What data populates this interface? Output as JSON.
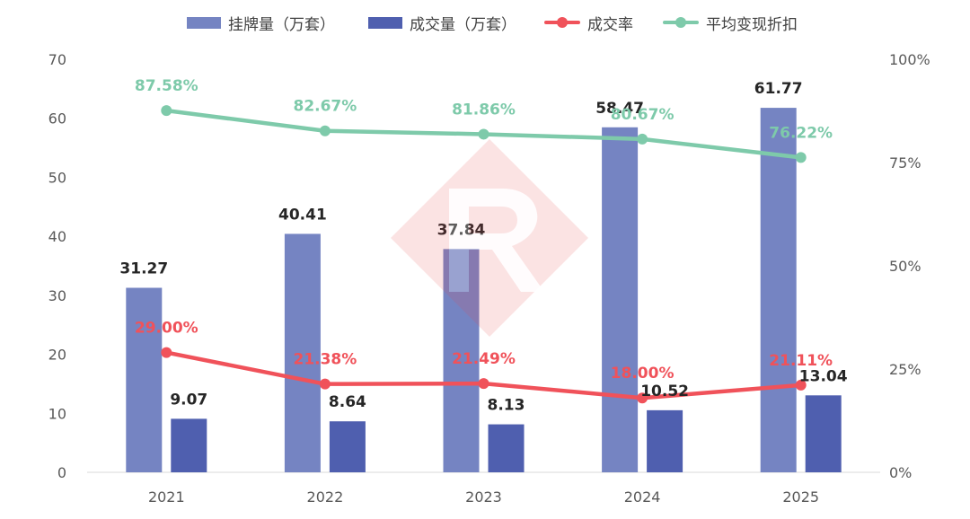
{
  "legend": {
    "listing_label": "挂牌量（万套）",
    "deal_label": "成交量（万套）",
    "rate_label": "成交率",
    "discount_label": "平均变现折扣"
  },
  "colors": {
    "listing": "#7584c2",
    "deal": "#4f5faf",
    "rate": "#f0525a",
    "discount": "#7ecaaa",
    "axis_text": "#595959",
    "label_text": "#262626",
    "watermark": "#e7474d"
  },
  "chart_data": {
    "type": "bar",
    "categories": [
      "2021",
      "2022",
      "2023",
      "2024",
      "2025"
    ],
    "series": [
      {
        "name": "挂牌量（万套）",
        "type": "bar",
        "axis": "left",
        "values": [
          31.27,
          40.41,
          37.84,
          58.47,
          61.77
        ],
        "labels": [
          "31.27",
          "40.41",
          "37.84",
          "58.47",
          "61.77"
        ]
      },
      {
        "name": "成交量（万套）",
        "type": "bar",
        "axis": "left",
        "values": [
          9.07,
          8.64,
          8.13,
          10.52,
          13.04
        ],
        "labels": [
          "9.07",
          "8.64",
          "8.13",
          "10.52",
          "13.04"
        ]
      },
      {
        "name": "成交率",
        "type": "line",
        "axis": "right",
        "values": [
          29.0,
          21.38,
          21.49,
          18.0,
          21.11
        ],
        "labels": [
          "29.00%",
          "21.38%",
          "21.49%",
          "18.00%",
          "21.11%"
        ]
      },
      {
        "name": "平均变现折扣",
        "type": "line",
        "axis": "right",
        "values": [
          87.58,
          82.67,
          81.86,
          80.67,
          76.22
        ],
        "labels": [
          "87.58%",
          "82.67%",
          "81.86%",
          "80.67%",
          "76.22%"
        ]
      }
    ],
    "ylim": [
      0,
      70
    ],
    "yticks": [
      "0",
      "10",
      "20",
      "30",
      "40",
      "50",
      "60",
      "70"
    ],
    "y2lim": [
      0,
      100
    ],
    "y2ticks": [
      "0%",
      "25%",
      "50%",
      "75%",
      "100%"
    ],
    "grid": false,
    "legend_position": "top"
  }
}
